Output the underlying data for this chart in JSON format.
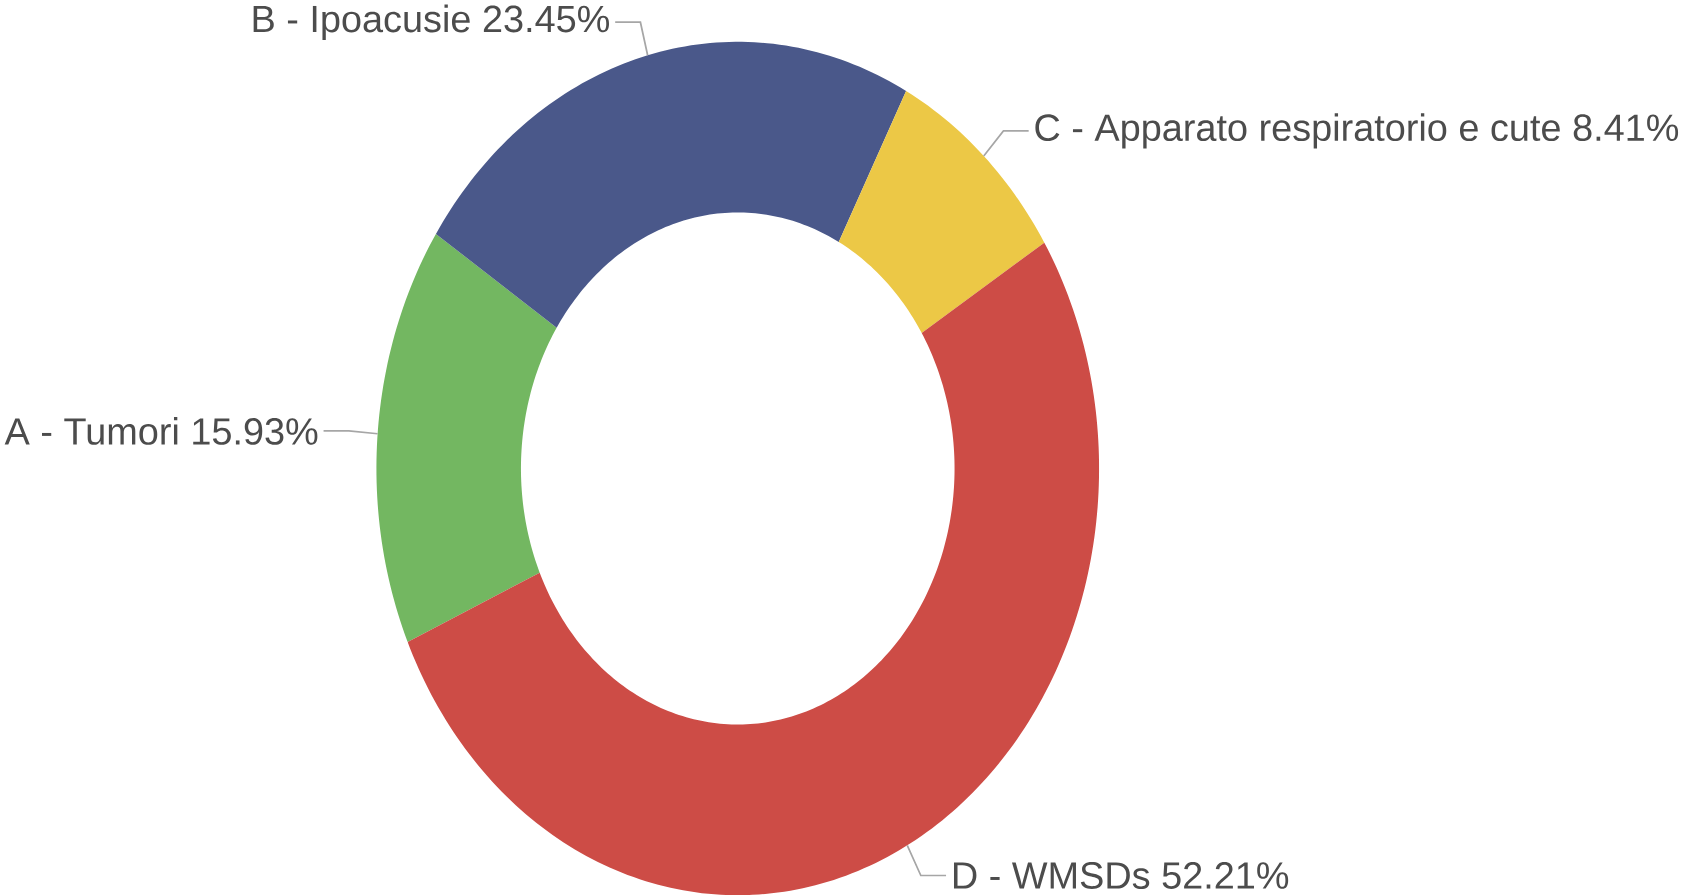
{
  "chart_data": {
    "type": "donut",
    "categories": [
      "A - Tumori",
      "B - Ipoacusie",
      "C - Apparato respiratorio e cute",
      "D - WMSDs"
    ],
    "values": [
      15.93,
      23.45,
      8.41,
      52.21
    ],
    "colors": [
      "#73b761",
      "#4a588a",
      "#ecc846",
      "#cd4c46"
    ],
    "value_labels": [
      "15.93%",
      "23.45%",
      "8.41%",
      "52.21%"
    ]
  }
}
